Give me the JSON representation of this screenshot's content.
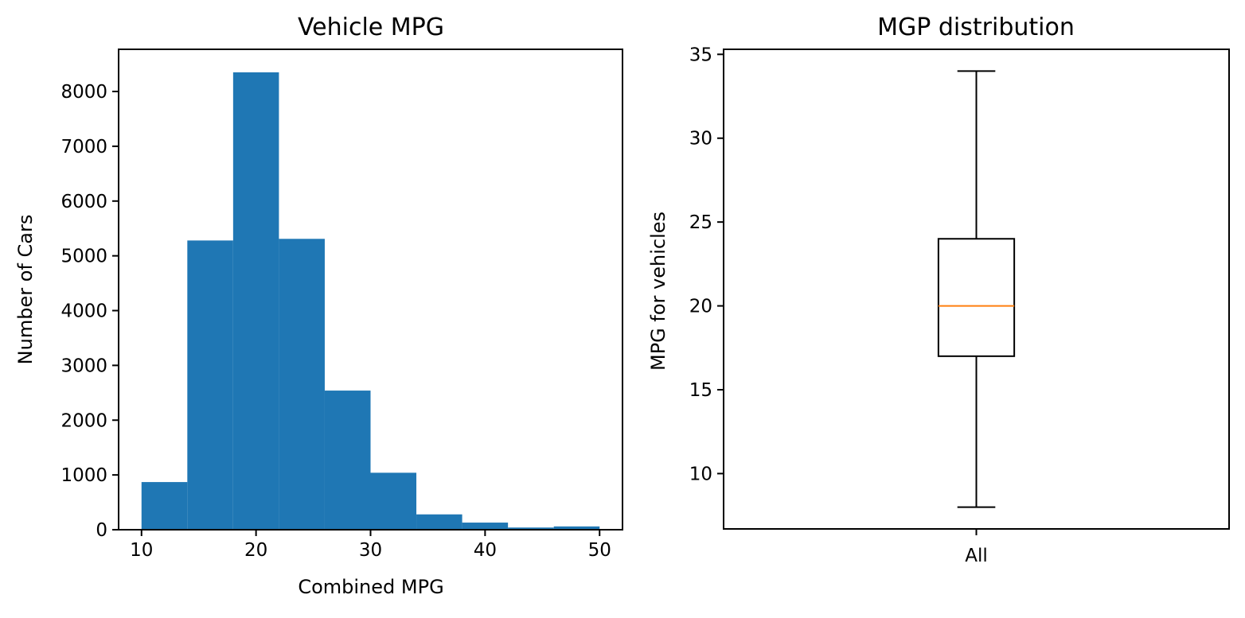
{
  "chart_data": [
    {
      "type": "bar",
      "subtype": "histogram",
      "title": "Vehicle MPG",
      "xlabel": "Combined MPG",
      "ylabel": "Number of Cars",
      "bin_edges": [
        10,
        14,
        18,
        22,
        26,
        30,
        34,
        38,
        42,
        46,
        50
      ],
      "values": [
        870,
        5280,
        8350,
        5310,
        2540,
        1040,
        280,
        130,
        40,
        60
      ],
      "xlim": [
        8,
        52
      ],
      "ylim": [
        0,
        8770
      ],
      "xticks": [
        10,
        20,
        30,
        40,
        50
      ],
      "yticks": [
        0,
        1000,
        2000,
        3000,
        4000,
        5000,
        6000,
        7000,
        8000
      ],
      "bar_color": "#1f77b4",
      "grid": false
    },
    {
      "type": "box",
      "title": "MGP distribution",
      "xlabel": "",
      "ylabel": "MPG for vehicles",
      "categories": [
        "All"
      ],
      "boxes": [
        {
          "whisker_low": 8,
          "q1": 17,
          "median": 20,
          "q3": 24,
          "whisker_high": 34
        }
      ],
      "ylim": [
        6.7,
        35.3
      ],
      "yticks": [
        10,
        15,
        20,
        25,
        30,
        35
      ],
      "median_color": "#ff7f0e",
      "grid": false
    }
  ]
}
